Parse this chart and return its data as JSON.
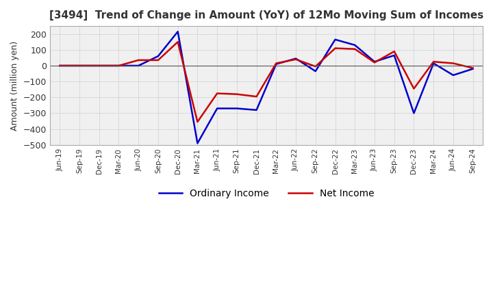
{
  "title": "[3494]  Trend of Change in Amount (YoY) of 12Mo Moving Sum of Incomes",
  "ylabel": "Amount (million yen)",
  "ylim": [
    -500,
    250
  ],
  "yticks": [
    200,
    100,
    0,
    -100,
    -200,
    -300,
    -400,
    -500
  ],
  "background_color": "#f0f0f0",
  "grid_color": "#aaaaaa",
  "ordinary_income_color": "#0000cc",
  "net_income_color": "#cc0000",
  "dates": [
    "Jun-19",
    "Sep-19",
    "Dec-19",
    "Mar-20",
    "Jun-20",
    "Sep-20",
    "Dec-20",
    "Mar-21",
    "Jun-21",
    "Sep-21",
    "Dec-21",
    "Mar-22",
    "Jun-22",
    "Sep-22",
    "Dec-22",
    "Mar-23",
    "Jun-23",
    "Sep-23",
    "Dec-23",
    "Mar-24",
    "Jun-24",
    "Sep-24"
  ],
  "ordinary_income": [
    0,
    0,
    0,
    0,
    0,
    60,
    215,
    -490,
    -270,
    -270,
    -280,
    10,
    45,
    -35,
    165,
    130,
    25,
    65,
    -300,
    15,
    -60,
    -20
  ],
  "net_income": [
    0,
    0,
    0,
    0,
    35,
    35,
    150,
    -355,
    -175,
    -180,
    -195,
    15,
    40,
    -5,
    110,
    105,
    20,
    90,
    -145,
    25,
    15,
    -15
  ],
  "legend_ordinary": "Ordinary Income",
  "legend_net": "Net Income"
}
